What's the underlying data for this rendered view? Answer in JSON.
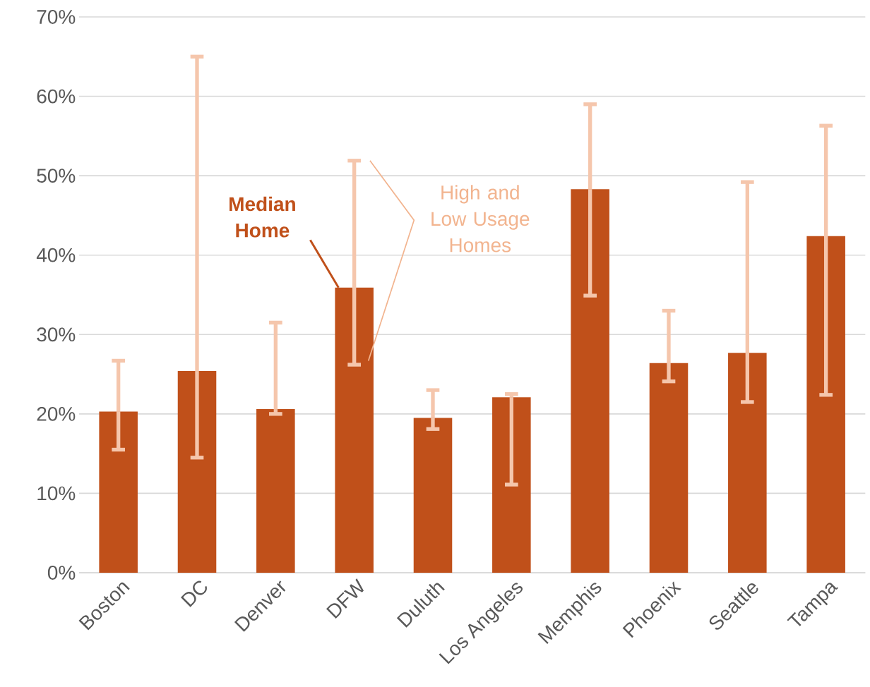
{
  "chart_data": {
    "type": "bar",
    "categories": [
      "Boston",
      "DC",
      "Denver",
      "DFW",
      "Duluth",
      "Los Angeles",
      "Memphis",
      "Phoenix",
      "Seattle",
      "Tampa"
    ],
    "values": [
      20.3,
      25.4,
      20.6,
      35.9,
      19.5,
      22.1,
      48.3,
      26.4,
      27.7,
      42.4
    ],
    "errors": [
      [
        15.5,
        26.7
      ],
      [
        14.5,
        65.0
      ],
      [
        20.0,
        31.5
      ],
      [
        26.2,
        51.9
      ],
      [
        18.1,
        23.0
      ],
      [
        11.1,
        22.5
      ],
      [
        34.9,
        59.0
      ],
      [
        24.1,
        33.0
      ],
      [
        21.5,
        49.2
      ],
      [
        22.4,
        56.3
      ]
    ],
    "color": "#c0501a",
    "ylim": [
      0,
      70
    ],
    "yticks": [
      {
        "value": 0,
        "label": "0%"
      },
      {
        "value": 10,
        "label": "10%"
      },
      {
        "value": 20,
        "label": "20%"
      },
      {
        "value": 30,
        "label": "30%"
      },
      {
        "value": 40,
        "label": "40%"
      },
      {
        "value": 50,
        "label": "50%"
      },
      {
        "value": 60,
        "label": "60%"
      },
      {
        "value": 70,
        "label": "70%"
      }
    ],
    "grid": "y",
    "annotations": [
      {
        "text": "Median Home",
        "x": "DFW",
        "y": 35.9
      },
      "High and Low Usage Homes"
    ]
  }
}
